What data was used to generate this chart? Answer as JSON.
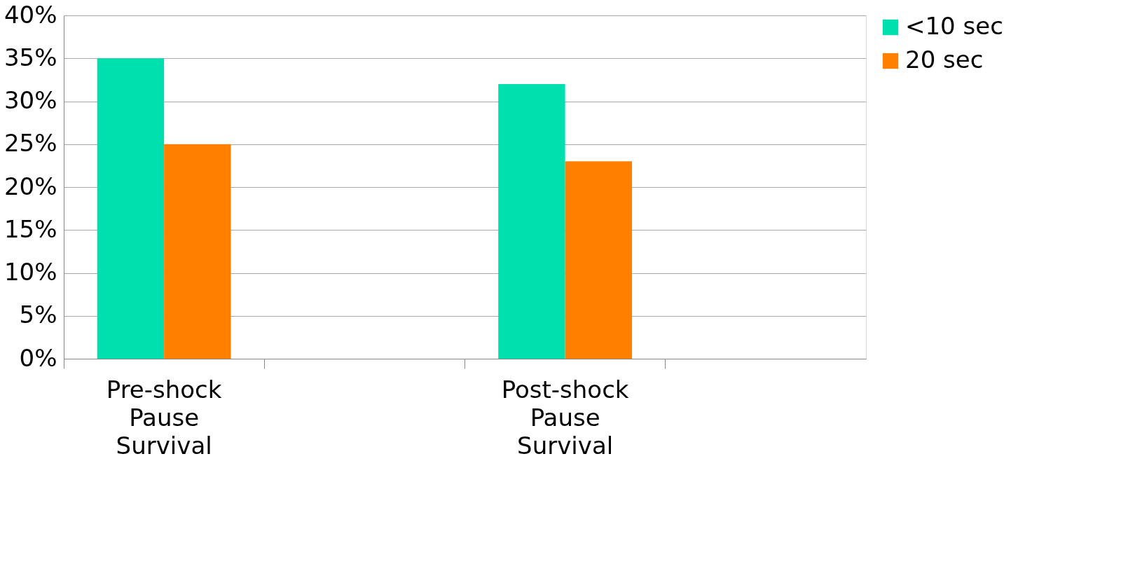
{
  "chart_data": {
    "type": "bar",
    "categories": [
      "Pre-shock Pause Survival",
      null,
      "Post-shock Pause Survival",
      null
    ],
    "series": [
      {
        "name": "<10 sec",
        "color": "#00dfae",
        "values": [
          35,
          null,
          32,
          null
        ]
      },
      {
        "name": "20 sec",
        "color": "#ff7f00",
        "values": [
          25,
          null,
          23,
          null
        ]
      }
    ],
    "ylim": [
      0,
      40
    ],
    "yticks": [
      {
        "value": 0,
        "label": "0%"
      },
      {
        "value": 5,
        "label": "5%"
      },
      {
        "value": 10,
        "label": "10%"
      },
      {
        "value": 15,
        "label": "15%"
      },
      {
        "value": 20,
        "label": "20%"
      },
      {
        "value": 25,
        "label": "25%"
      },
      {
        "value": 30,
        "label": "30%"
      },
      {
        "value": 35,
        "label": "35%"
      },
      {
        "value": 40,
        "label": "40%"
      }
    ],
    "grid": "y",
    "legend": "right"
  }
}
